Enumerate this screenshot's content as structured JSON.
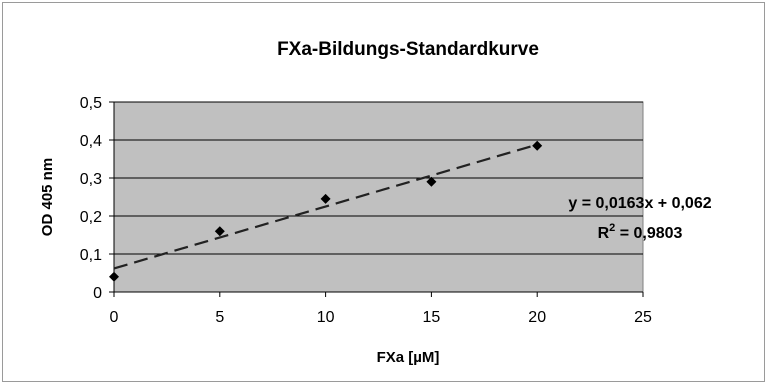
{
  "chart_data": {
    "type": "scatter",
    "title": "FXa-Bildungs-Standardkurve",
    "xlabel": "FXa [µM]",
    "ylabel": "OD 405 nm",
    "xlim": [
      0,
      25
    ],
    "ylim": [
      0,
      0.5
    ],
    "x_ticks": [
      "0",
      "5",
      "10",
      "15",
      "20",
      "25"
    ],
    "y_ticks": [
      "0",
      "0,1",
      "0,2",
      "0,3",
      "0,4",
      "0,5"
    ],
    "x_tick_values": [
      0,
      5,
      10,
      15,
      20,
      25
    ],
    "y_tick_values": [
      0,
      0.1,
      0.2,
      0.3,
      0.4,
      0.5
    ],
    "grid": true,
    "plot_background": "#c0c0c0",
    "series": [
      {
        "x": [
          0,
          5,
          10,
          15,
          20
        ],
        "y": [
          0.04,
          0.16,
          0.245,
          0.29,
          0.385
        ],
        "color": "#000000",
        "marker": "diamond"
      }
    ],
    "trendline": {
      "slope": 0.0163,
      "intercept": 0.062,
      "x_range": [
        0,
        20
      ],
      "style": "dashed",
      "equation": "y = 0,0163x + 0,062",
      "r2_prefix": "R",
      "r2_exp": "2",
      "r2_value": " = 0,9803"
    }
  }
}
